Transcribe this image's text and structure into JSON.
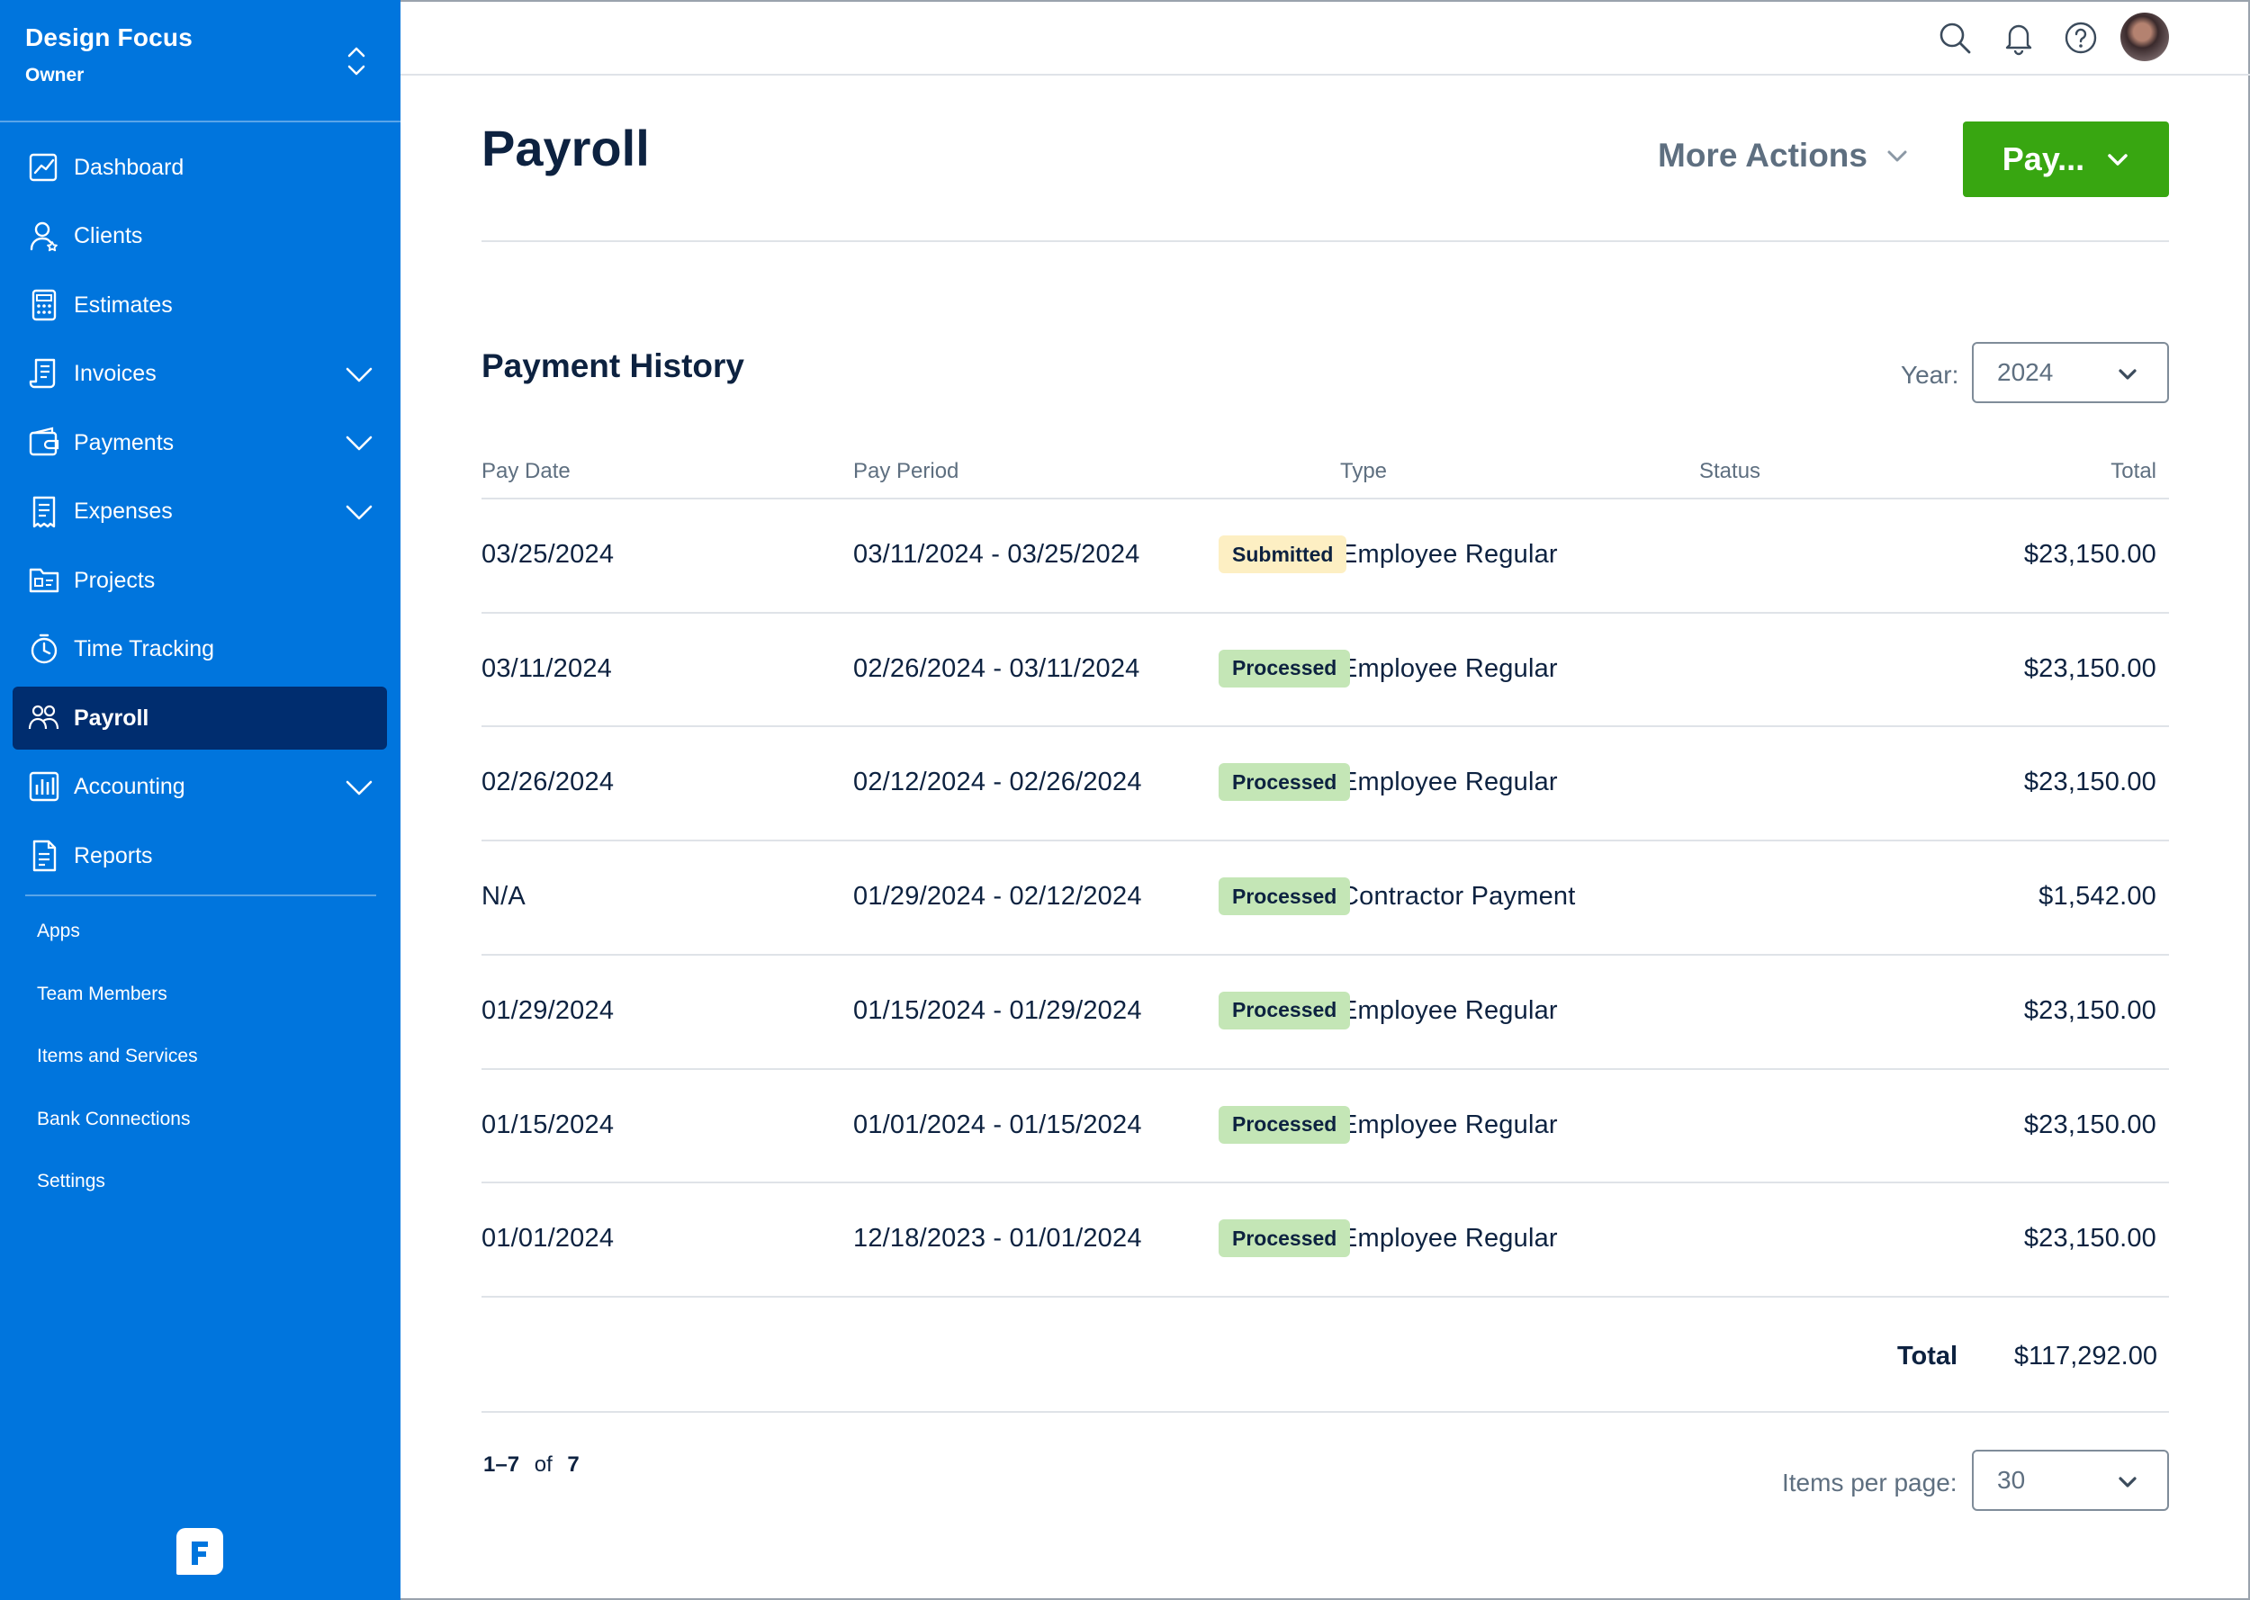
{
  "app": {
    "company": "Design Focus",
    "role": "Owner"
  },
  "nav": {
    "items": [
      {
        "label": "Dashboard",
        "icon": "chart-line-icon",
        "expandable": false
      },
      {
        "label": "Clients",
        "icon": "user-star-icon",
        "expandable": false
      },
      {
        "label": "Estimates",
        "icon": "calculator-icon",
        "expandable": false
      },
      {
        "label": "Invoices",
        "icon": "invoice-icon",
        "expandable": true
      },
      {
        "label": "Payments",
        "icon": "wallet-icon",
        "expandable": true
      },
      {
        "label": "Expenses",
        "icon": "receipt-icon",
        "expandable": true
      },
      {
        "label": "Projects",
        "icon": "folder-icon",
        "expandable": false
      },
      {
        "label": "Time Tracking",
        "icon": "stopwatch-icon",
        "expandable": false
      },
      {
        "label": "Payroll",
        "icon": "people-icon",
        "expandable": false,
        "active": true
      },
      {
        "label": "Accounting",
        "icon": "bar-chart-icon",
        "expandable": true
      },
      {
        "label": "Reports",
        "icon": "document-icon",
        "expandable": false
      }
    ],
    "secondary": [
      "Apps",
      "Team Members",
      "Items and Services",
      "Bank Connections",
      "Settings"
    ]
  },
  "topbar": {
    "icons": [
      "search-icon",
      "bell-icon",
      "help-icon"
    ]
  },
  "header": {
    "title": "Payroll",
    "more_actions": "More Actions",
    "pay_button": "Pay..."
  },
  "history": {
    "title": "Payment History",
    "year_label": "Year:",
    "year": "2024",
    "columns": [
      "Pay Date",
      "Pay Period",
      "Type",
      "Status",
      "Total"
    ],
    "rows": [
      {
        "pay_date": "03/25/2024",
        "period": "03/11/2024 - 03/25/2024",
        "type": "Employee Regular",
        "status": "Submitted",
        "total": "$23,150.00"
      },
      {
        "pay_date": "03/11/2024",
        "period": "02/26/2024 - 03/11/2024",
        "type": "Employee Regular",
        "status": "Processed",
        "total": "$23,150.00"
      },
      {
        "pay_date": "02/26/2024",
        "period": "02/12/2024 - 02/26/2024",
        "type": "Employee Regular",
        "status": "Processed",
        "total": "$23,150.00"
      },
      {
        "pay_date": "N/A",
        "period": "01/29/2024 - 02/12/2024",
        "type": "Contractor Payment",
        "status": "Processed",
        "total": "$1,542.00"
      },
      {
        "pay_date": "01/29/2024",
        "period": "01/15/2024 - 01/29/2024",
        "type": "Employee Regular",
        "status": "Processed",
        "total": "$23,150.00"
      },
      {
        "pay_date": "01/15/2024",
        "period": "01/01/2024 - 01/15/2024",
        "type": "Employee Regular",
        "status": "Processed",
        "total": "$23,150.00"
      },
      {
        "pay_date": "01/01/2024",
        "period": "12/18/2023 - 01/01/2024",
        "type": "Employee Regular",
        "status": "Processed",
        "total": "$23,150.00"
      }
    ],
    "total_label": "Total",
    "total_value": "$117,292.00",
    "pager": {
      "range": "1–7",
      "of": "of",
      "count": "7"
    },
    "items_per_page_label": "Items per page:",
    "items_per_page": "30"
  },
  "colors": {
    "sidebar": "#0075dd",
    "sidebar_active": "#002d6f",
    "pay_button": "#38a611",
    "submitted_badge": "#fdefc3",
    "processed_badge": "#c4e6b6"
  }
}
